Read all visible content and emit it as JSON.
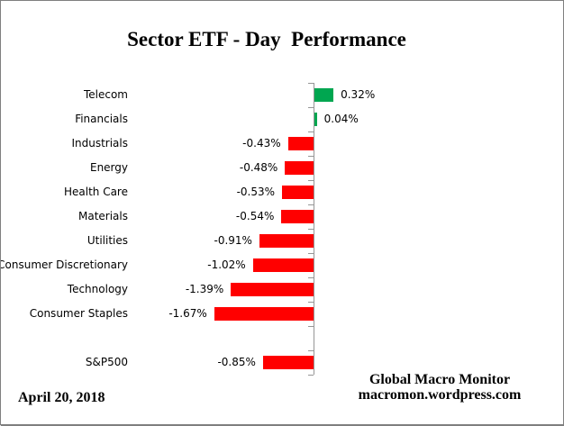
{
  "chart_data": {
    "type": "bar",
    "orientation": "horizontal",
    "title": "Sector ETF - Day  Performance",
    "categories": [
      "Telecom",
      "Financials",
      "Industrials",
      "Energy",
      "Health Care",
      "Materials",
      "Utilities",
      "Consumer Discretionary",
      "Technology",
      "Consumer Staples",
      "S&P500"
    ],
    "values": [
      0.32,
      0.04,
      -0.43,
      -0.48,
      -0.53,
      -0.54,
      -0.91,
      -1.02,
      -1.39,
      -1.67,
      -0.85
    ],
    "value_labels": [
      "0.32%",
      "0.04%",
      "-0.43%",
      "-0.48%",
      "-0.53%",
      "-0.54%",
      "-0.91%",
      "-1.02%",
      "-1.39%",
      "-1.67%",
      "-0.85%"
    ],
    "unit": "percent",
    "gap_row_before_last_category": true,
    "xlim": [
      -2.0,
      0.6
    ],
    "grid": false,
    "legend": false,
    "positive_color": "#00A650",
    "negative_color": "#FF0000",
    "axis_color": "#969696"
  },
  "footer": {
    "date": "April 20, 2018",
    "brand_line1": "Global Macro Monitor",
    "brand_line2": "macromon.wordpress.com"
  }
}
